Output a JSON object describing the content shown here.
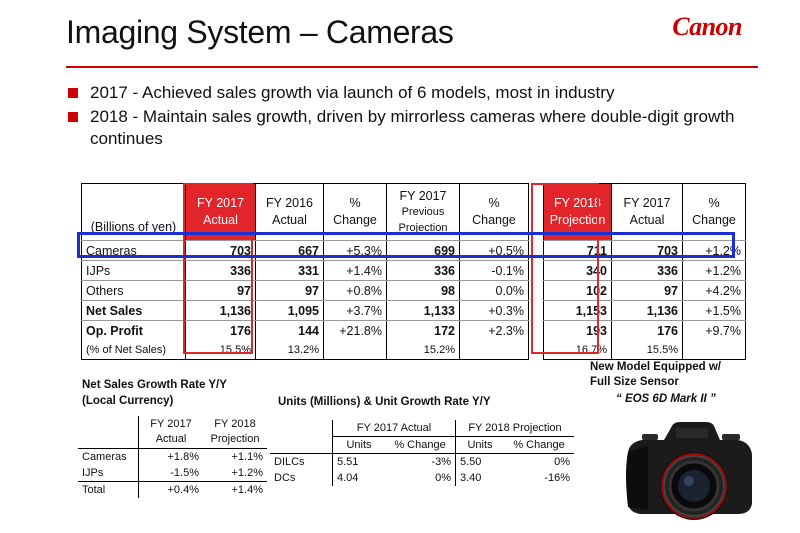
{
  "title": "Imaging System – Cameras",
  "logo": "Canon",
  "bullets": [
    "2017 - Achieved sales growth via launch of 6 models, most in industry",
    "2018 - Maintain sales growth, driven by mirrorless cameras where double-digit growth continues"
  ],
  "main_table": {
    "unit_label": "(Billions of yen)",
    "headers": [
      [
        "FY 2017",
        "Actual"
      ],
      [
        "FY 2016",
        "Actual"
      ],
      [
        "%",
        "Change"
      ],
      [
        "FY 2017",
        "Previous",
        "Projection"
      ],
      [
        "%",
        "Change"
      ],
      [
        "FY 2018",
        "Projection"
      ],
      [
        "FY 2017",
        "Actual"
      ],
      [
        "%",
        "Change"
      ]
    ],
    "rows": [
      {
        "label": "Cameras",
        "values": [
          "703",
          "667",
          "+5.3%",
          "699",
          "+0.5%",
          "711",
          "703",
          "+1.2%"
        ]
      },
      {
        "label": "IJPs",
        "values": [
          "336",
          "331",
          "+1.4%",
          "336",
          "-0.1%",
          "340",
          "336",
          "+1.2%"
        ]
      },
      {
        "label": "Others",
        "values": [
          "97",
          "97",
          "+0.8%",
          "98",
          "0.0%",
          "102",
          "97",
          "+4.2%"
        ]
      },
      {
        "label": "Net Sales",
        "values": [
          "1,136",
          "1,095",
          "+3.7%",
          "1,133",
          "+0.3%",
          "1,153",
          "1,136",
          "+1.5%"
        ]
      },
      {
        "label": "Op. Profit",
        "values": [
          "176",
          "144",
          "+21.8%",
          "172",
          "+2.3%",
          "193",
          "176",
          "+9.7%"
        ]
      },
      {
        "label": "(% of Net Sales)",
        "values": [
          "15.5%",
          "13.2%",
          "",
          "15.2%",
          "",
          "16.7%",
          "15.5%",
          ""
        ]
      }
    ]
  },
  "growth_table": {
    "title_line1": "Net Sales Growth Rate Y/Y",
    "title_line2": "(Local Currency)",
    "headers": [
      [
        "FY 2017",
        "Actual"
      ],
      [
        "FY 2018",
        "Projection"
      ]
    ],
    "rows": [
      {
        "label": "Cameras",
        "values": [
          "+1.8%",
          "+1.1%"
        ]
      },
      {
        "label": "IJPs",
        "values": [
          "-1.5%",
          "+1.2%"
        ]
      },
      {
        "label": "Total",
        "values": [
          "+0.4%",
          "+1.4%"
        ]
      }
    ]
  },
  "units_table": {
    "title": "Units (Millions) & Unit Growth Rate Y/Y",
    "group_headers": [
      "FY 2017 Actual",
      "FY 2018 Projection"
    ],
    "sub_headers": [
      "Units",
      "% Change",
      "Units",
      "% Change"
    ],
    "rows": [
      {
        "label": "DILCs",
        "values": [
          "5.51",
          "-3%",
          "5.50",
          "0%"
        ]
      },
      {
        "label": "DCs",
        "values": [
          "4.04",
          "0%",
          "3.40",
          "-16%"
        ]
      }
    ]
  },
  "new_model": {
    "line1": "New Model Equipped w/",
    "line2": "Full Size Sensor",
    "model": "“ EOS 6D Mark II ”"
  },
  "colors": {
    "accent_red": "#e2242b",
    "highlight_blue": "#1a2fd4"
  }
}
